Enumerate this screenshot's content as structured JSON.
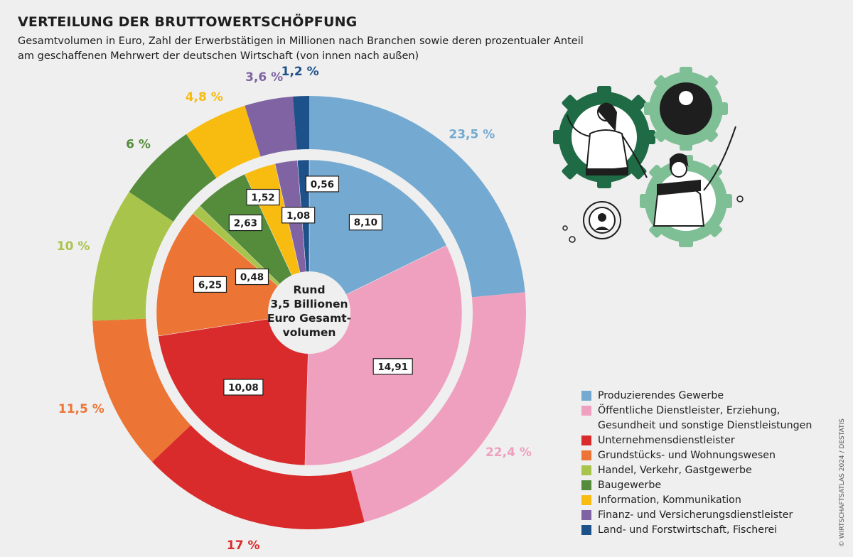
{
  "title": "VERTEILUNG DER BRUTTOWERTSCHÖPFUNG",
  "subtitle_lines": [
    "Gesamtvolumen in Euro, Zahl der Erwerbstätigen in Millionen nach Branchen sowie deren prozentualer Anteil",
    "am geschaffenen Mehrwert der deutschen Wirtschaft (von innen nach außen)"
  ],
  "source": "© WIRTSCHAFTSATLAS 2024 / DESTATIS",
  "chart_data": {
    "type": "pie",
    "center_label": [
      "Rund",
      "3,5 Billionen",
      "Euro Gesamt-",
      "volumen"
    ],
    "categories": [
      "Produzierendes Gewerbe",
      "Öffentliche Dienstleister, Erziehung, Gesundheit und sonstige Dienstleistungen",
      "Unternehmensdienstleister",
      "Grundstücks- und Wohnungswesen",
      "Handel, Verkehr, Gastgewerbe",
      "Baugewerbe",
      "Information, Kommunikation",
      "Finanz- und Versicherungsdienstleister",
      "Land- und Forstwirtschaft, Fischerei"
    ],
    "colors": [
      "#74aad1",
      "#f0a0bf",
      "#d92b2b",
      "#ec7434",
      "#a8c44a",
      "#548c3c",
      "#f8bb10",
      "#7f63a3",
      "#1d5189"
    ],
    "inner_ring": {
      "values": [
        8.1,
        14.91,
        10.08,
        6.25,
        0.48,
        2.63,
        1.52,
        1.08,
        0.56
      ],
      "labels": [
        "8,10",
        "14,91",
        "10,08",
        "6,25",
        "0,48",
        "2,63",
        "1,52",
        "1,08",
        "0,56"
      ]
    },
    "outer_ring": {
      "values": [
        23.5,
        22.4,
        17,
        11.5,
        10,
        6,
        4.8,
        3.6,
        1.2
      ],
      "labels": [
        "23,5 %",
        "22,4 %",
        "17 %",
        "11,5 %",
        "10 %",
        "6 %",
        "4,8 %",
        "3,6 %",
        "1,2 %"
      ]
    },
    "legend_lines": [
      [
        "Produzierendes Gewerbe"
      ],
      [
        "Öffentliche Dienstleister, Erziehung,",
        "Gesundheit und sonstige Dienstleistungen"
      ],
      [
        "Unternehmensdienstleister"
      ],
      [
        "Grundstücks- und Wohnungswesen"
      ],
      [
        "Handel, Verkehr, Gastgewerbe"
      ],
      [
        "Baugewerbe"
      ],
      [
        "Information, Kommunikation"
      ],
      [
        "Finanz- und Versicherungsdienstleister"
      ],
      [
        "Land- und Forstwirtschaft, Fischerei"
      ]
    ],
    "legend_placement": "bottom-right"
  }
}
